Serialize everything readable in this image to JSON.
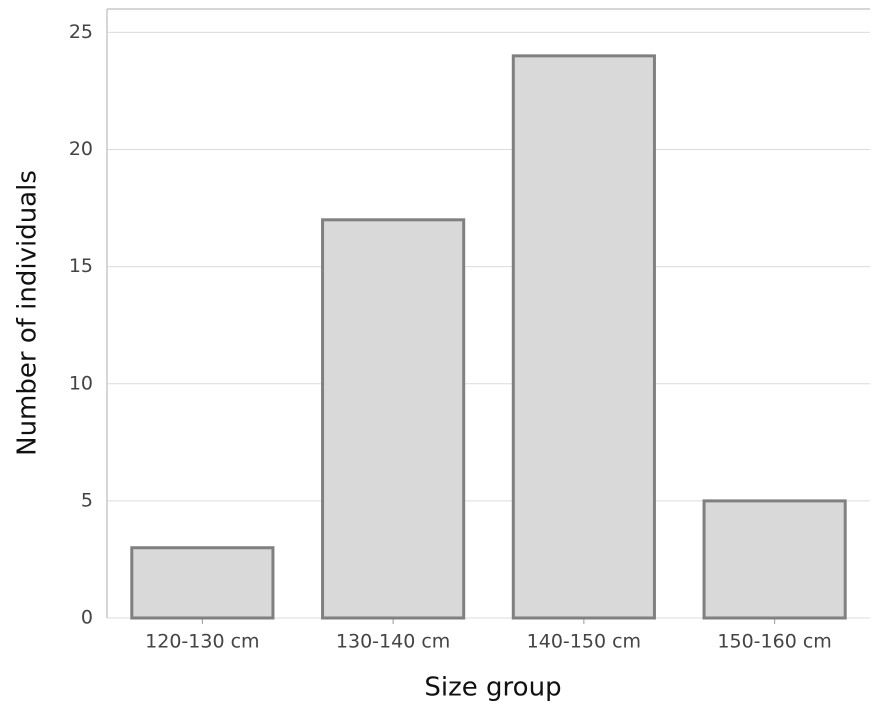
{
  "chart_data": {
    "type": "bar",
    "x_label": "Size group",
    "y_label": "Number of individuals",
    "categories": [
      "120-130 cm",
      "130-140 cm",
      "140-150 cm",
      "150-160 cm"
    ],
    "values": [
      3,
      17,
      24,
      5
    ],
    "color": "#d9d9d9",
    "ylim": [
      0,
      26
    ],
    "yticks": [
      0,
      5,
      10,
      15,
      20,
      25
    ],
    "grid": true
  }
}
